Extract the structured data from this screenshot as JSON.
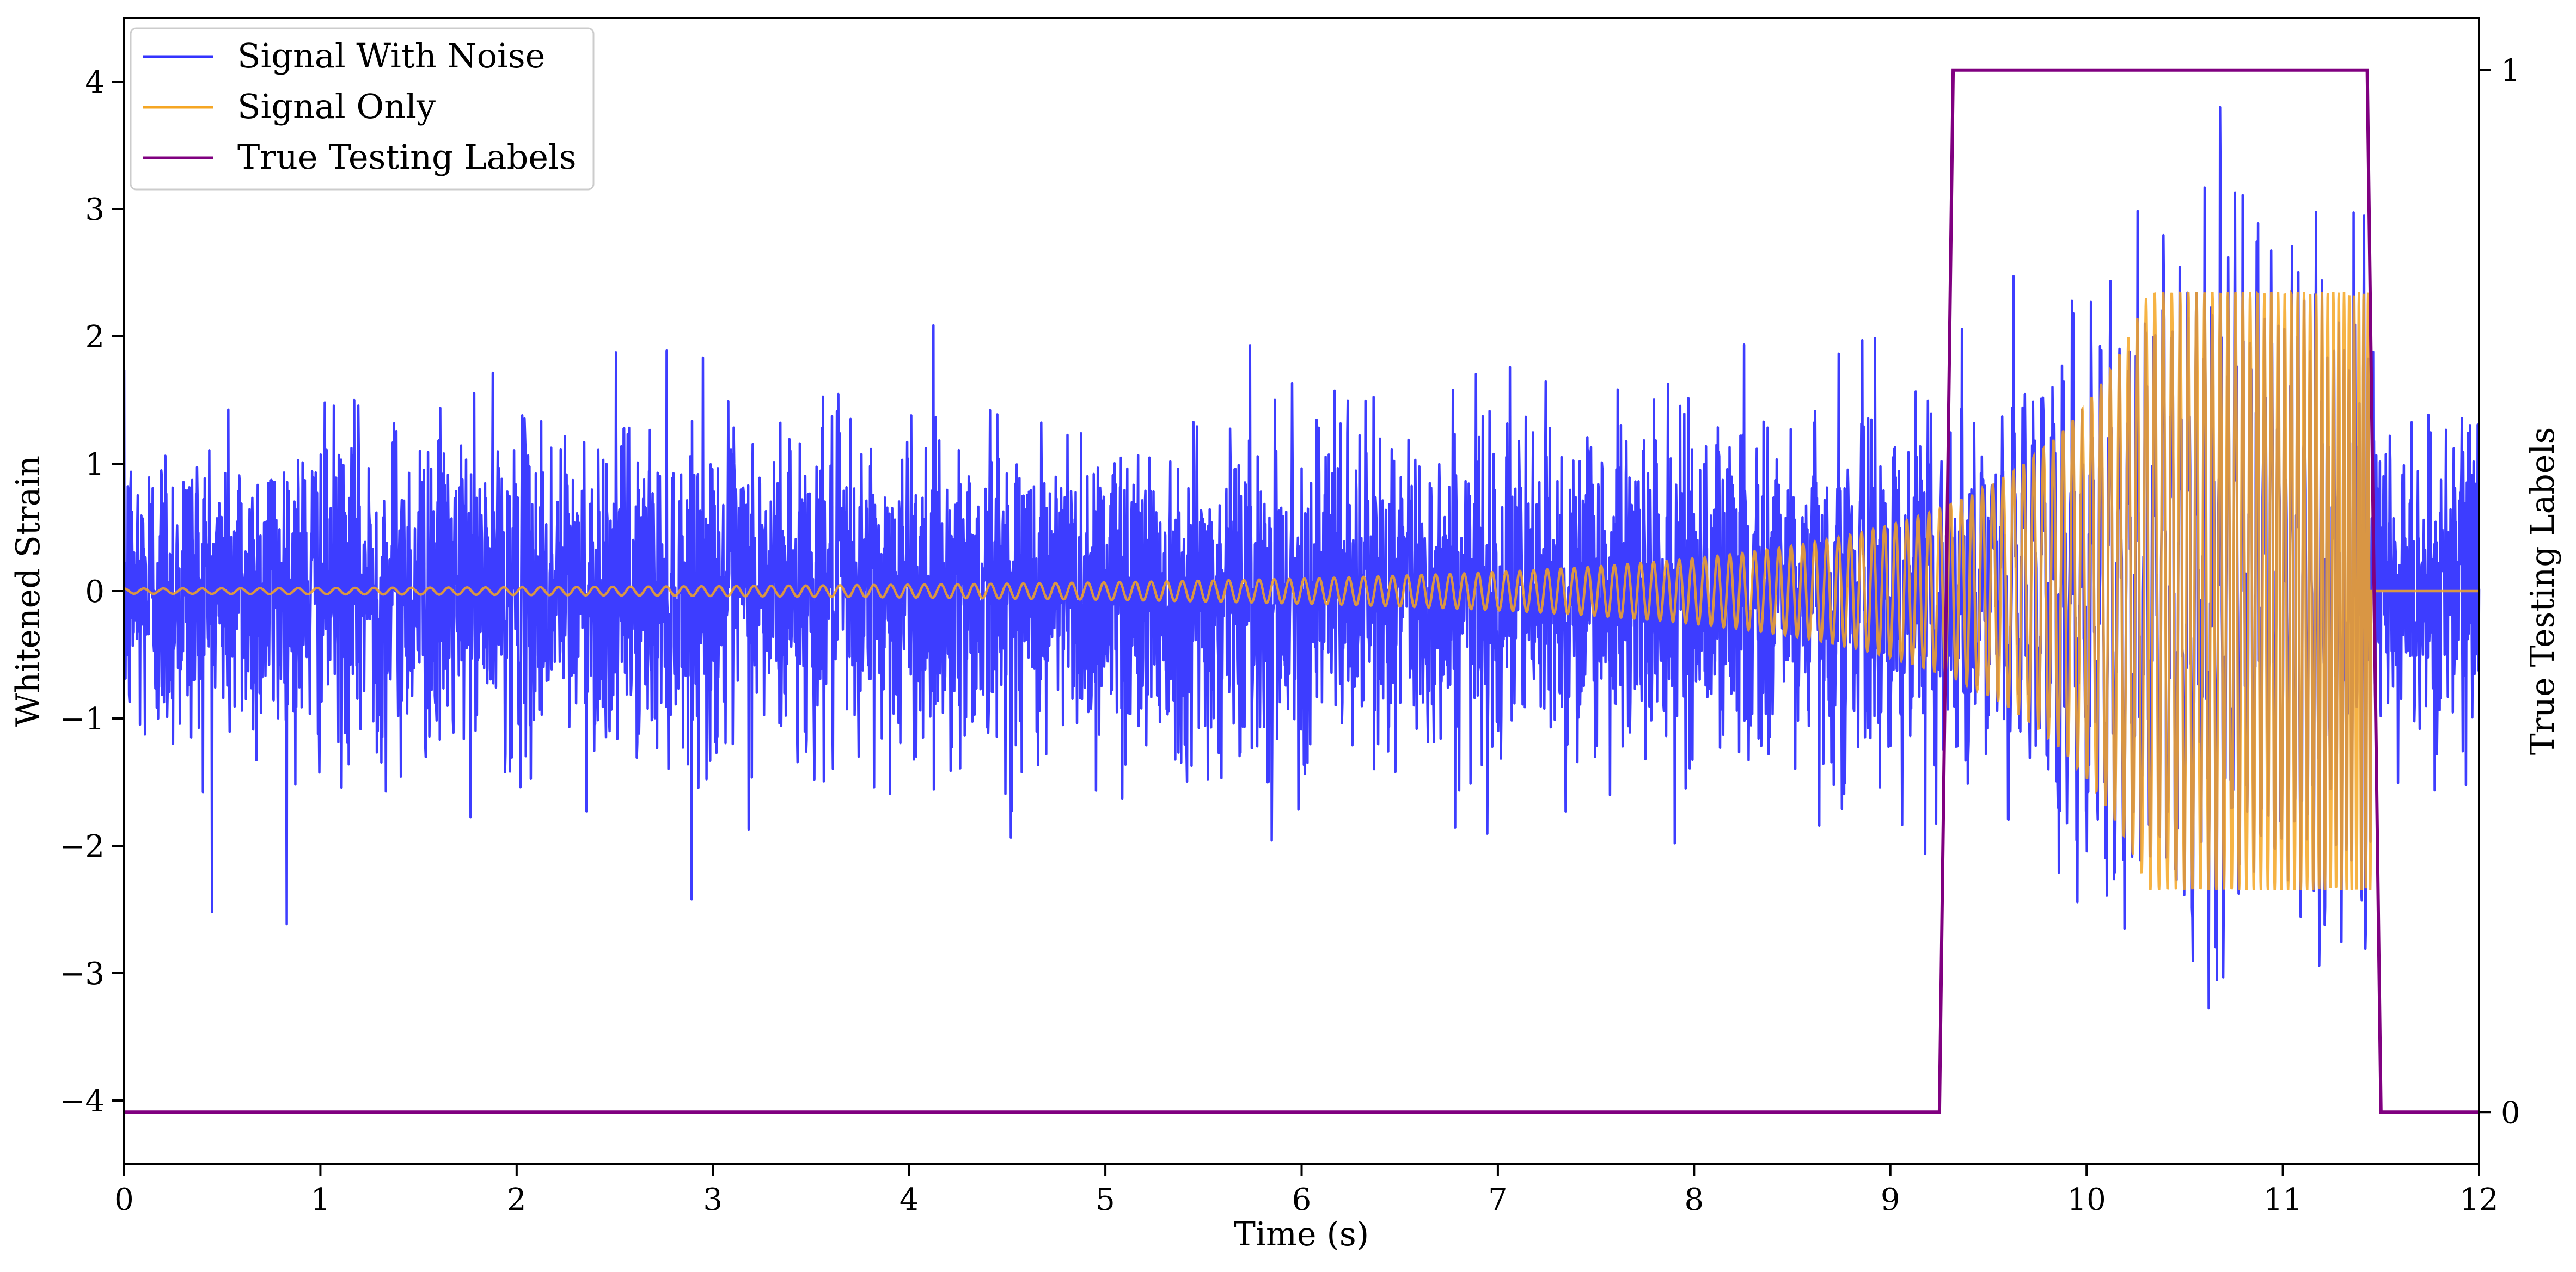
{
  "chart_data": {
    "type": "line",
    "title": "",
    "xlabel": "Time (s)",
    "ylabel": "Whitened Strain",
    "y2label": "True Testing Labels",
    "xlim": [
      0,
      12
    ],
    "ylim": [
      -4.5,
      4.5
    ],
    "y2lim": [
      -0.05,
      1.05
    ],
    "x_ticks": [
      0,
      1,
      2,
      3,
      4,
      5,
      6,
      7,
      8,
      9,
      10,
      11,
      12
    ],
    "y_ticks": [
      -4,
      -3,
      -2,
      -1,
      0,
      1,
      2,
      3,
      4
    ],
    "y_tick_labels": [
      "−4",
      "−3",
      "−2",
      "−1",
      "0",
      "1",
      "2",
      "3",
      "4"
    ],
    "y2_ticks": [
      0,
      1
    ],
    "grid": false,
    "legend_position": "top-left",
    "series": [
      {
        "name": "Signal With Noise",
        "color": "#3333ff",
        "axis": "left",
        "noise_std": 0.62,
        "approx_range": [
          -4.2,
          3.8
        ]
      },
      {
        "name": "Signal Only",
        "color": "#f5a623",
        "axis": "left",
        "kind": "chirp",
        "x_start": 0,
        "x_merger": 11.45,
        "initial_frequency_hz": 10,
        "amplitude_start": 0.02,
        "amplitude_peak": 2.35,
        "after_merger": 0
      },
      {
        "name": "True Testing Labels",
        "color": "#800080",
        "axis": "right",
        "x": [
          0,
          9.25,
          9.32,
          11.43,
          11.5,
          12
        ],
        "y": [
          0,
          0,
          1,
          1,
          0,
          0
        ]
      }
    ]
  }
}
